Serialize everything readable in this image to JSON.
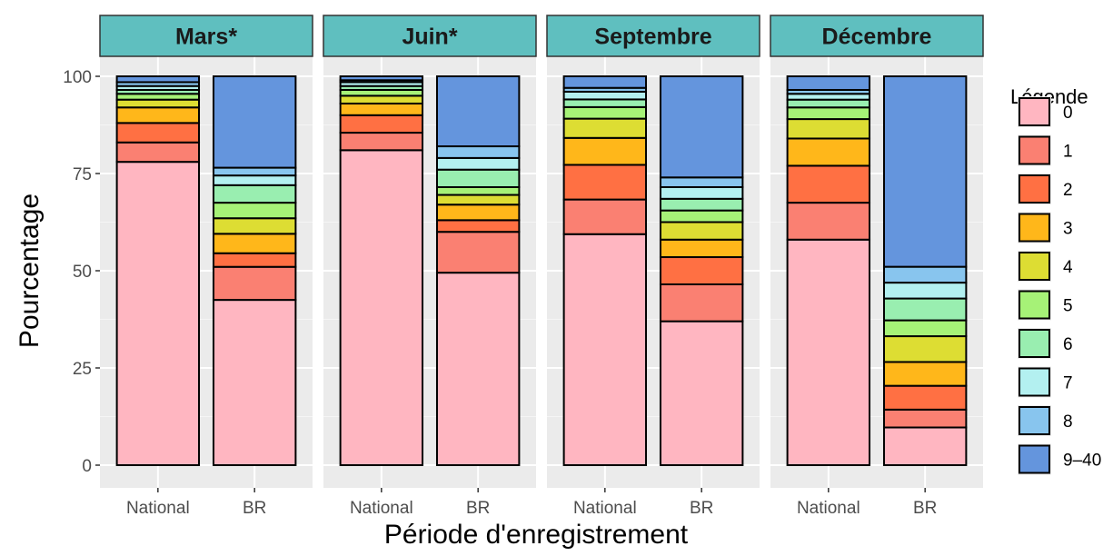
{
  "chart_data": {
    "type": "bar",
    "stacked": true,
    "faceted": true,
    "xlabel": "Période d'enregistrement",
    "ylabel": "Pourcentage",
    "ylim": [
      0,
      100
    ],
    "yticks": [
      0,
      25,
      50,
      75,
      100
    ],
    "grid": true,
    "legend": {
      "title": "Légende",
      "placement": "right",
      "entries": [
        "0",
        "1",
        "2",
        "3",
        "4",
        "5",
        "6",
        "7",
        "8",
        "9–40"
      ]
    },
    "colors": [
      "#FFB6C1",
      "#FA8072",
      "#FF7043",
      "#FFB71A",
      "#DDDD33",
      "#A6F277",
      "#99EEB0",
      "#B3F0F0",
      "#88C5EE",
      "#6495DD"
    ],
    "categories": [
      "National",
      "BR"
    ],
    "facets": [
      {
        "title": "Mars*",
        "bars": [
          {
            "category": "National",
            "values": [
              78,
              5,
              5,
              4,
              2,
              1.5,
              1,
              1,
              1,
              1.5
            ]
          },
          {
            "category": "BR",
            "values": [
              42.5,
              8.5,
              3.5,
              5,
              4,
              4,
              4.5,
              2.5,
              2,
              23.5
            ]
          }
        ]
      },
      {
        "title": "Juin*",
        "bars": [
          {
            "category": "National",
            "values": [
              81,
              4.5,
              4.5,
              3,
              2,
              1.5,
              1,
              1,
              0.5,
              1
            ]
          },
          {
            "category": "BR",
            "values": [
              49.5,
              10.5,
              3,
              4,
              2.5,
              2,
              4.5,
              3,
              3,
              18
            ]
          }
        ]
      },
      {
        "title": "Septembre",
        "bars": [
          {
            "category": "National",
            "values": [
              60,
              9,
              9,
              7,
              5,
              3,
              2,
              2,
              1,
              3
            ]
          },
          {
            "category": "BR",
            "values": [
              37,
              9.5,
              7,
              4.5,
              4.5,
              3,
              3,
              3,
              2.5,
              26
            ]
          }
        ]
      },
      {
        "title": "Décembre",
        "bars": [
          {
            "category": "National",
            "values": [
              58,
              9.5,
              9.5,
              7,
              5,
              3,
              2,
              1.5,
              1,
              3.5
            ]
          },
          {
            "category": "BR",
            "values": [
              9.5,
              4.5,
              6,
              6,
              6.5,
              4,
              5.5,
              4,
              4,
              48
            ]
          }
        ]
      }
    ]
  }
}
